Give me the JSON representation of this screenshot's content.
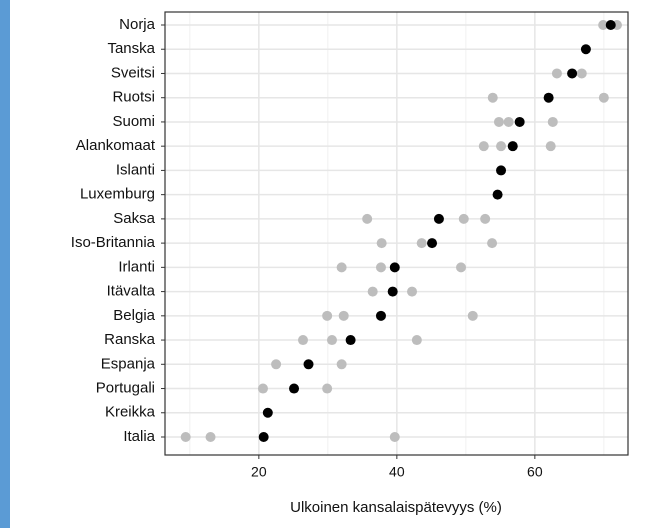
{
  "chart_data": {
    "type": "dot",
    "xlabel": "Ulkoinen kansalaispätevyys (%)",
    "categories": [
      "Norja",
      "Tanska",
      "Sveitsi",
      "Ruotsi",
      "Suomi",
      "Alankomaat",
      "Islanti",
      "Luxemburg",
      "Saksa",
      "Iso-Britannia",
      "Irlanti",
      "Itävalta",
      "Belgia",
      "Ranska",
      "Espanja",
      "Portugali",
      "Kreikka",
      "Italia"
    ],
    "series": [
      {
        "color": "#bdbdbd",
        "values": [
          69.9,
          null,
          63.2,
          53.9,
          54.8,
          52.6,
          null,
          null,
          35.7,
          37.8,
          32.0,
          36.5,
          29.9,
          26.4,
          22.5,
          20.6,
          null,
          9.4
        ]
      },
      {
        "color": "#bdbdbd",
        "values": [
          71.9,
          null,
          66.8,
          70.0,
          56.2,
          55.1,
          null,
          null,
          49.7,
          43.6,
          37.7,
          42.2,
          32.3,
          30.6,
          32.0,
          29.9,
          null,
          13.0
        ]
      },
      {
        "color": "#bdbdbd",
        "values": [
          null,
          null,
          null,
          null,
          62.6,
          62.3,
          null,
          null,
          52.8,
          53.8,
          49.3,
          null,
          51.0,
          42.9,
          null,
          null,
          null,
          39.7
        ]
      },
      {
        "color": "#000000",
        "values": [
          71.0,
          67.4,
          65.4,
          62.0,
          57.8,
          56.8,
          55.1,
          54.6,
          46.1,
          45.1,
          39.7,
          39.4,
          37.7,
          33.3,
          27.2,
          25.1,
          21.3,
          20.7
        ]
      }
    ],
    "xlim": [
      6.4,
      73.5
    ],
    "xticks": [
      20,
      40,
      60
    ],
    "xminorticks": [
      10,
      30,
      50,
      70
    ],
    "grid": true
  }
}
